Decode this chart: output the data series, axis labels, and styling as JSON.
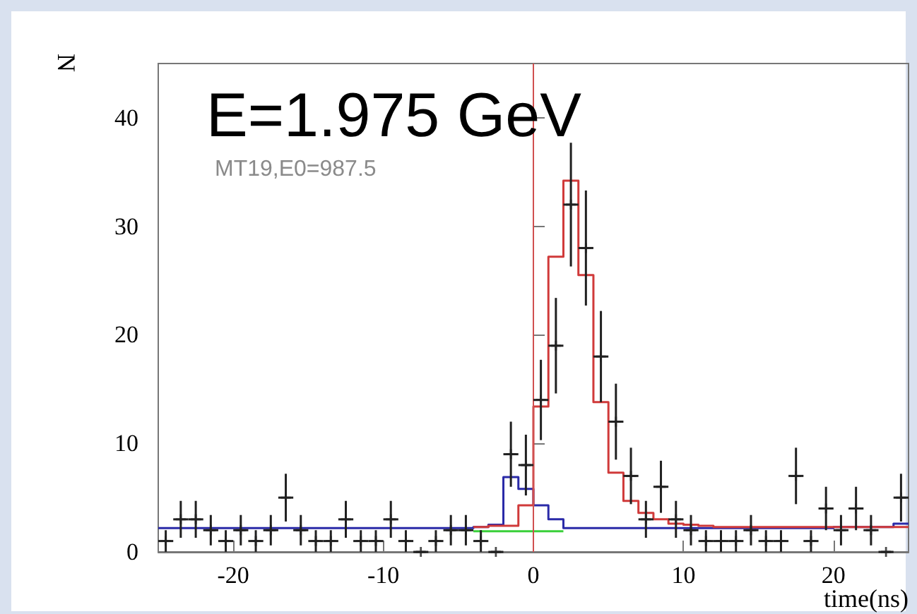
{
  "chart_data": {
    "type": "scatter",
    "title": "E=1.975 GeV",
    "xlabel": "time(ns)",
    "ylabel": "N",
    "annotations": [
      "MT19,E0=987.5"
    ],
    "xlim": [
      -25,
      25
    ],
    "xticks": [
      -20,
      -10,
      0,
      10,
      20
    ],
    "ylim": [
      0,
      45
    ],
    "yticks": [
      0,
      10,
      20,
      30,
      40
    ],
    "ref_lines": [
      {
        "axis": "x",
        "value": 0,
        "color": "#d05050"
      }
    ],
    "series": [
      {
        "color": "#202020",
        "marker": "cross",
        "x": [
          -24.5,
          -23.5,
          -22.5,
          -21.5,
          -20.5,
          -19.5,
          -18.5,
          -17.5,
          -16.5,
          -15.5,
          -14.5,
          -13.5,
          -12.5,
          -11.5,
          -10.5,
          -9.5,
          -8.5,
          -7.5,
          -6.5,
          -5.5,
          -4.5,
          -3.5,
          -2.5,
          -1.5,
          -0.5,
          0.5,
          1.5,
          2.5,
          3.5,
          4.5,
          5.5,
          6.5,
          7.5,
          8.5,
          9.5,
          10.5,
          11.5,
          12.5,
          13.5,
          14.5,
          15.5,
          16.5,
          17.5,
          18.5,
          19.5,
          20.5,
          21.5,
          22.5,
          23.5,
          24.5
        ],
        "values": [
          1,
          3,
          3,
          2,
          1,
          2,
          1,
          2,
          5,
          2,
          1,
          1,
          3,
          1,
          1,
          3,
          1,
          0,
          1,
          2,
          2,
          1,
          0,
          9,
          8,
          14,
          19,
          32,
          28,
          18,
          12,
          7,
          3,
          6,
          3,
          2,
          1,
          1,
          1,
          2,
          1,
          1,
          7,
          1,
          4,
          2,
          4,
          2,
          0,
          5
        ],
        "errors": [
          1,
          1.7,
          1.7,
          1.4,
          1,
          1.4,
          1,
          1.4,
          2.2,
          1.4,
          1,
          1,
          1.7,
          1,
          1,
          1.7,
          1,
          null,
          1,
          1.4,
          1.4,
          1,
          null,
          3,
          2.8,
          3.7,
          4.4,
          5.7,
          5.3,
          4.2,
          3.5,
          2.6,
          1.7,
          2.4,
          1.7,
          1.4,
          1,
          1,
          1,
          1.4,
          1,
          1,
          2.6,
          1,
          2,
          1.4,
          2,
          1.4,
          null,
          2.2
        ],
        "xerrors": [
          0.5,
          0.5,
          0.5,
          0.5,
          0.5,
          0.5,
          0.5,
          0.5,
          0.5,
          0.5,
          0.5,
          0.5,
          0.5,
          0.5,
          0.5,
          0.5,
          0.5,
          0.5,
          0.5,
          0.5,
          0.5,
          0.5,
          0.5,
          0.5,
          0.5,
          0.5,
          0.5,
          0.5,
          0.5,
          0.5,
          0.5,
          0.5,
          0.5,
          0.5,
          0.5,
          0.5,
          0.5,
          0.5,
          0.5,
          0.5,
          0.5,
          0.5,
          0.5,
          0.5,
          0.5,
          0.5,
          0.5,
          0.5,
          0.5,
          0.5
        ]
      },
      {
        "type": "step",
        "color": "#2a2aa8",
        "x": [
          -25,
          -24,
          -23,
          -22,
          -21,
          -20,
          -19,
          -18,
          -17,
          -16,
          -15,
          -14,
          -13,
          -12,
          -11,
          -10,
          -9,
          -8,
          -7,
          -6,
          -5,
          -4,
          -3,
          -2,
          -1,
          0,
          1,
          2,
          3,
          4,
          5,
          6,
          7,
          8,
          9,
          10,
          11,
          12,
          13,
          14,
          15,
          16,
          17,
          18,
          19,
          20,
          21,
          22,
          23,
          24,
          25
        ],
        "values": [
          2.2,
          2.2,
          2.2,
          2.2,
          2.2,
          2.2,
          2.2,
          2.2,
          2.2,
          2.2,
          2.2,
          2.2,
          2.2,
          2.2,
          2.2,
          2.2,
          2.2,
          2.2,
          2.2,
          2.2,
          2.2,
          2.3,
          2.5,
          6.9,
          5.8,
          4.3,
          3.0,
          2.2,
          2.2,
          2.2,
          2.2,
          2.2,
          2.2,
          2.2,
          2.2,
          2.2,
          2.2,
          2.2,
          2.2,
          2.2,
          2.2,
          2.2,
          2.2,
          2.2,
          2.2,
          2.3,
          2.3,
          2.3,
          2.3,
          2.6,
          2.6
        ]
      },
      {
        "type": "step",
        "color": "#d03a3a",
        "x": [
          -4,
          -3,
          -2,
          -1,
          0,
          1,
          2,
          3,
          4,
          5,
          6,
          7,
          8,
          9,
          10,
          11,
          12,
          13,
          14,
          15,
          16,
          17,
          18,
          19,
          20,
          21,
          22,
          23,
          24,
          25
        ],
        "values": [
          2.3,
          2.4,
          2.4,
          4.3,
          13.4,
          27.2,
          34.2,
          25.5,
          13.8,
          7.3,
          4.7,
          3.6,
          3.0,
          2.6,
          2.5,
          2.4,
          2.3,
          2.3,
          2.3,
          2.3,
          2.3,
          2.3,
          2.3,
          2.3,
          2.3,
          2.3,
          2.3,
          2.3,
          2.3,
          2.3
        ]
      },
      {
        "type": "line",
        "color": "#3ad03a",
        "x": [
          -4,
          2
        ],
        "values": [
          1.9,
          1.9
        ]
      }
    ]
  }
}
